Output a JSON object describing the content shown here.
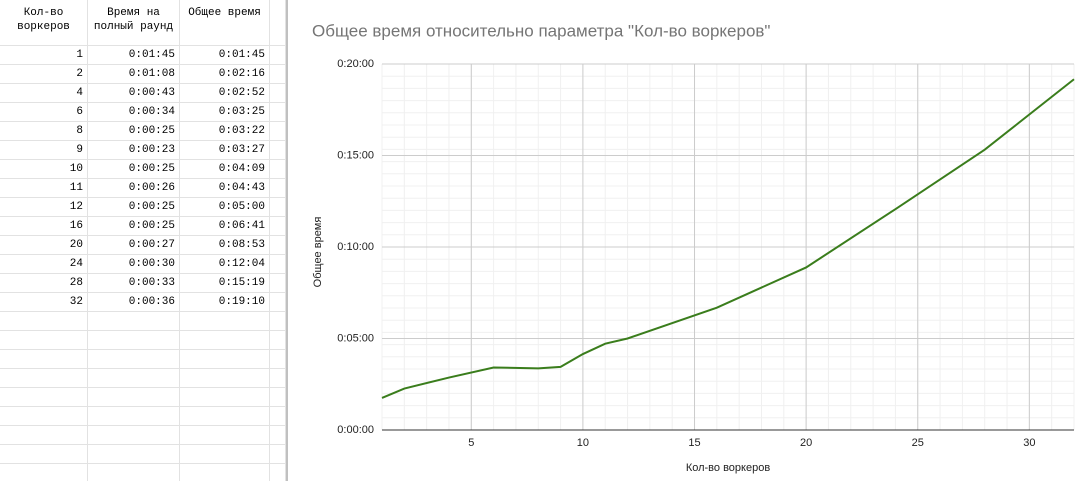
{
  "table": {
    "headers": [
      "Кол-во воркеров",
      "Время на полный раунд",
      "Общее время"
    ],
    "rows": [
      [
        "1",
        "0:01:45",
        "0:01:45"
      ],
      [
        "2",
        "0:01:08",
        "0:02:16"
      ],
      [
        "4",
        "0:00:43",
        "0:02:52"
      ],
      [
        "6",
        "0:00:34",
        "0:03:25"
      ],
      [
        "8",
        "0:00:25",
        "0:03:22"
      ],
      [
        "9",
        "0:00:23",
        "0:03:27"
      ],
      [
        "10",
        "0:00:25",
        "0:04:09"
      ],
      [
        "11",
        "0:00:26",
        "0:04:43"
      ],
      [
        "12",
        "0:00:25",
        "0:05:00"
      ],
      [
        "16",
        "0:00:25",
        "0:06:41"
      ],
      [
        "20",
        "0:00:27",
        "0:08:53"
      ],
      [
        "24",
        "0:00:30",
        "0:12:04"
      ],
      [
        "28",
        "0:00:33",
        "0:15:19"
      ],
      [
        "32",
        "0:00:36",
        "0:19:10"
      ]
    ]
  },
  "chart_data": {
    "type": "line",
    "title": "Общее время относительно параметра \"Кол-во воркеров\"",
    "x_label": "Кол-во воркеров",
    "y_label": "Общее время",
    "x": [
      1,
      2,
      4,
      6,
      8,
      9,
      10,
      11,
      12,
      16,
      20,
      24,
      28,
      32
    ],
    "values": [
      105,
      136,
      172,
      205,
      202,
      207,
      249,
      283,
      300,
      401,
      533,
      724,
      919,
      1150
    ],
    "color": "#3a7d1c",
    "xlim": [
      1,
      32
    ],
    "xticks": [
      5,
      10,
      15,
      20,
      25,
      30
    ],
    "ylim": [
      0,
      1200
    ],
    "yticks": [
      {
        "value": 0,
        "label": "0:00:00"
      },
      {
        "value": 300,
        "label": "0:05:00"
      },
      {
        "value": 600,
        "label": "0:10:00"
      },
      {
        "value": 900,
        "label": "0:15:00"
      },
      {
        "value": 1200,
        "label": "0:20:00"
      }
    ],
    "grid": true
  }
}
